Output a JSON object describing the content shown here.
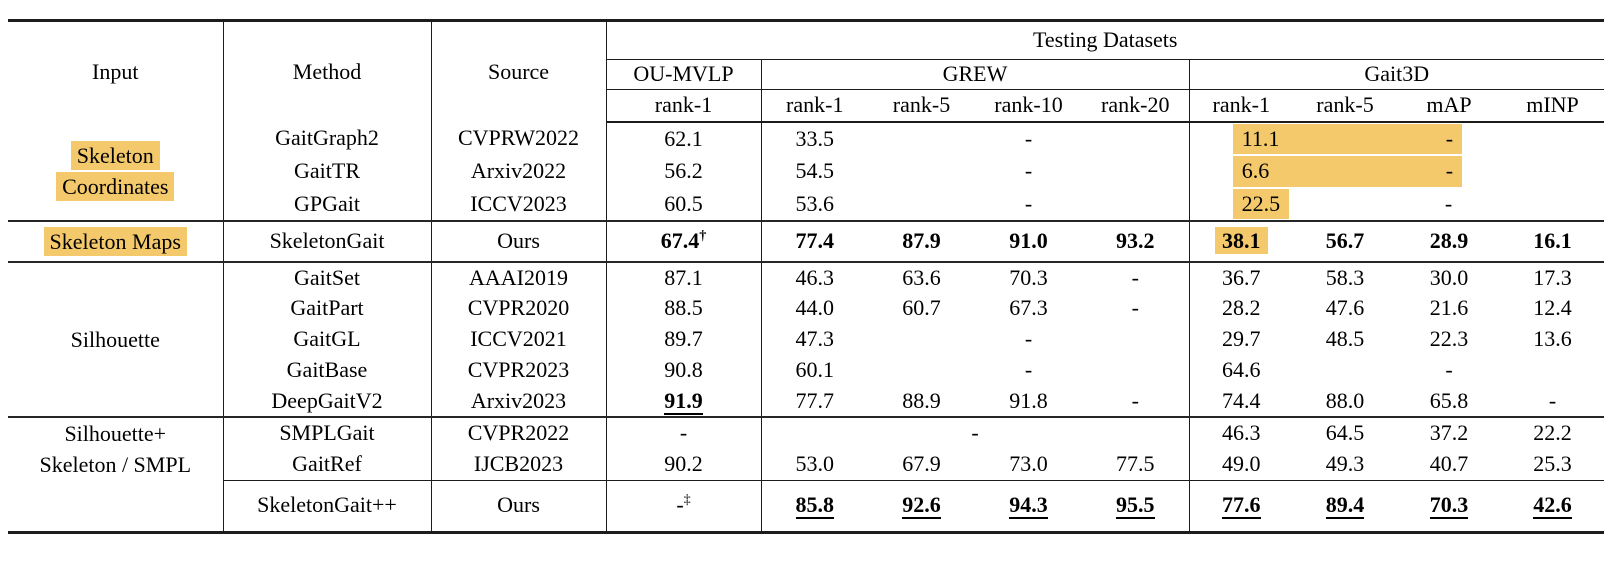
{
  "highlight_color": "#F3C96B",
  "table": {
    "header": {
      "input": "Input",
      "method": "Method",
      "source": "Source",
      "group_title": "Testing Datasets",
      "datasets": [
        {
          "name": "OU-MVLP",
          "cols": [
            "rank-1"
          ]
        },
        {
          "name": "GREW",
          "cols": [
            "rank-1",
            "rank-5",
            "rank-10",
            "rank-20"
          ]
        },
        {
          "name": "Gait3D",
          "cols": [
            "rank-1",
            "rank-5",
            "mAP",
            "mINP"
          ]
        }
      ]
    },
    "blocks": [
      {
        "id": "sc",
        "input": {
          "lines": [
            "Skeleton",
            "Coordinates"
          ],
          "highlight": true
        },
        "rows": [
          {
            "method": "GaitGraph2",
            "source": "CVPRW2022",
            "oumvlp": "62.1",
            "grew": [
              "33.5",
              "",
              "-",
              ""
            ],
            "g3d": {
              "type": "band-long",
              "v": "11.1",
              "dash": "-"
            }
          },
          {
            "method": "GaitTR",
            "source": "Arxiv2022",
            "oumvlp": "56.2",
            "grew": [
              "54.5",
              "",
              "-",
              ""
            ],
            "g3d": {
              "type": "band-long",
              "v": "6.6",
              "dash": "-"
            }
          },
          {
            "method": "GPGait",
            "source": "ICCV2023",
            "oumvlp": "60.5",
            "grew": [
              "53.6",
              "",
              "-",
              ""
            ],
            "g3d": {
              "type": "band-short",
              "v": "22.5",
              "dash": "-"
            }
          }
        ]
      },
      {
        "id": "sm",
        "input": {
          "lines": [
            "Skeleton Maps"
          ],
          "highlight": true
        },
        "rows": [
          {
            "method": "SkeletonGait",
            "source": "Ours",
            "oumvlp": {
              "v": "67.4",
              "sup": "†",
              "s": "b"
            },
            "grew": [
              {
                "v": "77.4",
                "s": "b"
              },
              {
                "v": "87.9",
                "s": "b"
              },
              {
                "v": "91.0",
                "s": "b"
              },
              {
                "v": "93.2",
                "s": "b"
              }
            ],
            "g3d": [
              {
                "v": "38.1",
                "s": "bh"
              },
              {
                "v": "56.7",
                "s": "b"
              },
              {
                "v": "28.9",
                "s": "b"
              },
              {
                "v": "16.1",
                "s": "b"
              }
            ]
          }
        ]
      },
      {
        "id": "sil",
        "input": {
          "lines": [
            "Silhouette"
          ],
          "highlight": false
        },
        "rows": [
          {
            "method": "GaitSet",
            "source": "AAAI2019",
            "oumvlp": "87.1",
            "grew": [
              "46.3",
              "63.6",
              "70.3",
              "-"
            ],
            "g3d": [
              "36.7",
              "58.3",
              "30.0",
              "17.3"
            ]
          },
          {
            "method": "GaitPart",
            "source": "CVPR2020",
            "oumvlp": "88.5",
            "grew": [
              "44.0",
              "60.7",
              "67.3",
              "-"
            ],
            "g3d": [
              "28.2",
              "47.6",
              "21.6",
              "12.4"
            ]
          },
          {
            "method": "GaitGL",
            "source": "ICCV2021",
            "oumvlp": "89.7",
            "grew": [
              "47.3",
              "",
              "-",
              ""
            ],
            "g3d": [
              "29.7",
              "48.5",
              "22.3",
              "13.6"
            ]
          },
          {
            "method": "GaitBase",
            "source": "CVPR2023",
            "oumvlp": "90.8",
            "grew": [
              "60.1",
              "",
              "-",
              ""
            ],
            "g3d": [
              "64.6",
              "",
              "-",
              ""
            ]
          },
          {
            "method": "DeepGaitV2",
            "source": "Arxiv2023",
            "oumvlp": {
              "v": "91.9",
              "s": "bu"
            },
            "grew": [
              "77.7",
              "88.9",
              "91.8",
              "-"
            ],
            "g3d": [
              "74.4",
              "88.0",
              "65.8",
              "-"
            ]
          }
        ]
      },
      {
        "id": "mix",
        "input": {
          "lines": [
            "Silhouette+",
            "Skeleton / SMPL"
          ],
          "highlight": false
        },
        "rows": [
          {
            "method": "SMPLGait",
            "source": "CVPR2022",
            "oumvlp": "-",
            "grew": {
              "type": "dash-span",
              "v": "-"
            },
            "g3d": [
              "46.3",
              "64.5",
              "37.2",
              "22.2"
            ]
          },
          {
            "method": "GaitRef",
            "source": "IJCB2023",
            "oumvlp": "90.2",
            "grew": [
              "53.0",
              "67.9",
              "73.0",
              "77.5"
            ],
            "g3d": [
              "49.0",
              "49.3",
              "40.7",
              "25.3"
            ]
          },
          {
            "cline": true,
            "method": "SkeletonGait++",
            "source": "Ours",
            "oumvlp": {
              "v": "-",
              "sup": "‡"
            },
            "grew": [
              {
                "v": "85.8",
                "s": "bu"
              },
              {
                "v": "92.6",
                "s": "bu"
              },
              {
                "v": "94.3",
                "s": "bu"
              },
              {
                "v": "95.5",
                "s": "bu"
              }
            ],
            "g3d": [
              {
                "v": "77.6",
                "s": "bu"
              },
              {
                "v": "89.4",
                "s": "bu"
              },
              {
                "v": "70.3",
                "s": "bu"
              },
              {
                "v": "42.6",
                "s": "bu"
              }
            ]
          }
        ]
      }
    ]
  }
}
